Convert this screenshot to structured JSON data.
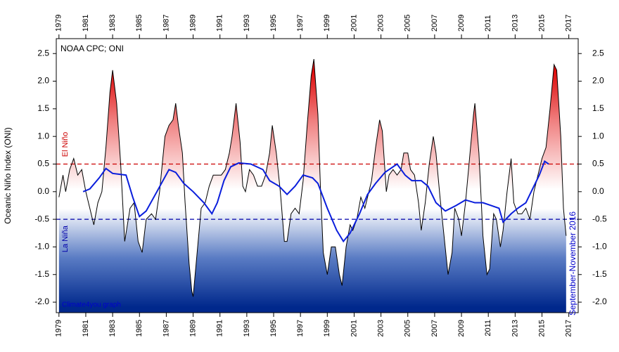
{
  "chart_data": {
    "type": "line",
    "title": "NOAA CPC; ONI",
    "y_label": "Oceanic Niño Index (ONI)",
    "xlim": [
      1978.8,
      2017.7
    ],
    "ylim": [
      -2.19,
      2.77
    ],
    "xticks": [
      1979,
      1981,
      1983,
      1985,
      1987,
      1989,
      1991,
      1993,
      1995,
      1997,
      1999,
      2001,
      2003,
      2005,
      2007,
      2009,
      2011,
      2013,
      2015,
      2017
    ],
    "yticks": [
      {
        "value": -2,
        "label": "-2.0"
      },
      -1.5,
      {
        "value": -1,
        "label": "-1.0"
      },
      -0.5,
      {
        "value": 0,
        "label": "0.0"
      },
      0.5,
      {
        "value": 1,
        "label": "1.0"
      },
      1.5,
      {
        "value": 2,
        "label": "2.0"
      },
      2.5
    ],
    "reference_lines": [
      {
        "value": 0.5,
        "color": "#cc0000",
        "label": "El Niño"
      },
      {
        "value": -0.5,
        "color": "#0000aa",
        "label": "La Niña"
      }
    ],
    "annotations": [
      "Climate4you graph",
      "September-November 2016"
    ],
    "series": [
      {
        "color": "#000000",
        "fill": "gradient",
        "x": [
          1979.0,
          1979.3,
          1979.5,
          1979.8,
          1980.1,
          1980.4,
          1980.7,
          1981.0,
          1981.3,
          1981.6,
          1981.9,
          1982.2,
          1982.5,
          1982.8,
          1983.0,
          1983.3,
          1983.6,
          1983.9,
          1984.3,
          1984.6,
          1984.9,
          1985.2,
          1985.5,
          1985.9,
          1986.2,
          1986.5,
          1986.9,
          1987.2,
          1987.5,
          1987.7,
          1987.9,
          1988.2,
          1988.4,
          1988.7,
          1988.9,
          1989.0,
          1989.3,
          1989.6,
          1989.9,
          1990.2,
          1990.5,
          1990.8,
          1991.1,
          1991.4,
          1991.7,
          1991.9,
          1992.2,
          1992.5,
          1992.7,
          1992.9,
          1993.2,
          1993.5,
          1993.8,
          1994.1,
          1994.4,
          1994.7,
          1994.9,
          1995.2,
          1995.5,
          1995.8,
          1996.0,
          1996.3,
          1996.6,
          1996.9,
          1997.2,
          1997.5,
          1997.8,
          1998.0,
          1998.3,
          1998.5,
          1998.7,
          1999.0,
          1999.3,
          1999.6,
          1999.9,
          2000.1,
          2000.4,
          2000.7,
          2000.9,
          2001.2,
          2001.5,
          2001.8,
          2002.0,
          2002.3,
          2002.6,
          2002.9,
          2003.1,
          2003.4,
          2003.6,
          2003.9,
          2004.2,
          2004.5,
          2004.7,
          2005.0,
          2005.2,
          2005.5,
          2005.8,
          2006.0,
          2006.3,
          2006.6,
          2006.9,
          2007.1,
          2007.4,
          2007.7,
          2008.0,
          2008.3,
          2008.5,
          2008.8,
          2009.0,
          2009.3,
          2009.6,
          2009.9,
          2010.0,
          2010.3,
          2010.6,
          2010.9,
          2011.1,
          2011.4,
          2011.6,
          2011.9,
          2012.1,
          2012.4,
          2012.7,
          2012.9,
          2013.2,
          2013.5,
          2013.8,
          2014.1,
          2014.4,
          2014.7,
          2015.0,
          2015.3,
          2015.6,
          2015.9,
          2016.1,
          2016.4,
          2016.6,
          2016.8
        ],
        "values": [
          -0.1,
          0.3,
          0.0,
          0.4,
          0.6,
          0.3,
          0.4,
          0.0,
          -0.3,
          -0.6,
          -0.2,
          0.0,
          0.8,
          1.8,
          2.2,
          1.6,
          0.5,
          -0.9,
          -0.3,
          -0.2,
          -0.9,
          -1.1,
          -0.5,
          -0.4,
          -0.5,
          0.0,
          1.0,
          1.2,
          1.3,
          1.6,
          1.2,
          0.7,
          -0.2,
          -1.3,
          -1.8,
          -1.9,
          -1.1,
          -0.3,
          -0.2,
          0.1,
          0.3,
          0.3,
          0.3,
          0.4,
          0.7,
          1.0,
          1.6,
          0.9,
          0.1,
          0.0,
          0.4,
          0.3,
          0.1,
          0.1,
          0.3,
          0.7,
          1.2,
          0.7,
          0.0,
          -0.9,
          -0.9,
          -0.4,
          -0.3,
          -0.4,
          0.2,
          1.2,
          2.1,
          2.4,
          1.4,
          0.0,
          -1.1,
          -1.5,
          -1.0,
          -1.0,
          -1.5,
          -1.7,
          -1.0,
          -0.6,
          -0.7,
          -0.5,
          -0.1,
          -0.3,
          -0.1,
          0.2,
          0.8,
          1.3,
          1.1,
          0.0,
          0.3,
          0.4,
          0.3,
          0.4,
          0.7,
          0.7,
          0.4,
          0.3,
          -0.2,
          -0.7,
          -0.2,
          0.5,
          1.0,
          0.7,
          -0.1,
          -0.8,
          -1.5,
          -1.1,
          -0.3,
          -0.5,
          -0.8,
          -0.2,
          0.6,
          1.4,
          1.6,
          0.7,
          -0.8,
          -1.5,
          -1.4,
          -0.4,
          -0.5,
          -1.0,
          -0.7,
          0.0,
          0.6,
          -0.2,
          -0.4,
          -0.4,
          -0.3,
          -0.5,
          0.0,
          0.3,
          0.6,
          0.8,
          1.5,
          2.3,
          2.2,
          1.0,
          -0.3,
          -0.8
        ]
      },
      {
        "color": "#0a1edc",
        "x": [
          1980.8,
          1981.3,
          1982.0,
          1982.5,
          1983.0,
          1984.0,
          1984.5,
          1985.0,
          1985.5,
          1986.3,
          1987.2,
          1987.7,
          1988.3,
          1989.0,
          1989.8,
          1990.4,
          1990.8,
          1991.3,
          1991.8,
          1992.4,
          1993.3,
          1994.2,
          1994.7,
          1995.4,
          1996.0,
          1996.6,
          1997.2,
          1997.9,
          1998.3,
          1999.0,
          1999.7,
          2000.2,
          2000.7,
          2001.4,
          2002.0,
          2002.6,
          2003.3,
          2004.2,
          2004.8,
          2005.3,
          2006.0,
          2006.5,
          2007.1,
          2007.8,
          2008.6,
          2009.3,
          2010.0,
          2010.6,
          2011.2,
          2011.8,
          2012.1,
          2012.7,
          2013.2,
          2013.8,
          2014.3,
          2014.8,
          2015.2,
          2015.5
        ],
        "values": [
          0.0,
          0.05,
          0.25,
          0.42,
          0.33,
          0.3,
          -0.1,
          -0.45,
          -0.35,
          0.0,
          0.4,
          0.35,
          0.15,
          0.0,
          -0.2,
          -0.4,
          -0.2,
          0.2,
          0.45,
          0.52,
          0.5,
          0.4,
          0.2,
          0.1,
          -0.05,
          0.1,
          0.3,
          0.25,
          0.15,
          -0.3,
          -0.7,
          -0.9,
          -0.75,
          -0.4,
          -0.05,
          0.15,
          0.35,
          0.5,
          0.3,
          0.2,
          0.2,
          0.1,
          -0.2,
          -0.35,
          -0.25,
          -0.15,
          -0.2,
          -0.2,
          -0.25,
          -0.3,
          -0.55,
          -0.4,
          -0.3,
          -0.2,
          0.05,
          0.3,
          0.55,
          0.5
        ]
      }
    ]
  }
}
